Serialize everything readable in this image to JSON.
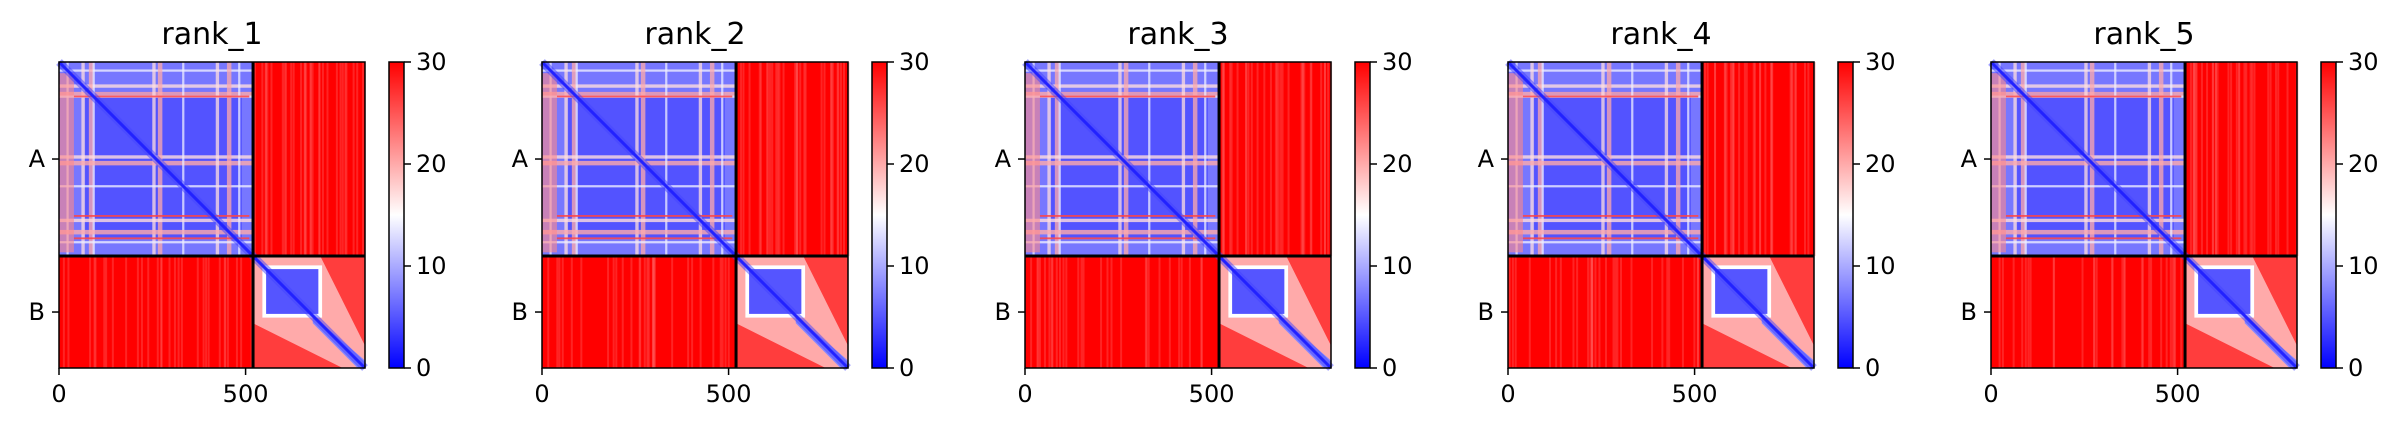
{
  "chart_data": {
    "type": "heatmap",
    "colormap": {
      "low": "#0000ff",
      "mid": "#ffffff",
      "high": "#ff0000"
    },
    "matrix_size": 820,
    "chain_boundary": 520,
    "colorbar": {
      "min": 0,
      "max": 30,
      "ticks": [
        0,
        10,
        20,
        30
      ]
    },
    "x_ticks": [
      0,
      500
    ],
    "y_tick_labels": [
      {
        "label": "A",
        "value": 260
      },
      {
        "label": "B",
        "value": 670
      }
    ],
    "panels": [
      {
        "title": "rank_1"
      },
      {
        "title": "rank_2"
      },
      {
        "title": "rank_3"
      },
      {
        "title": "rank_4"
      },
      {
        "title": "rank_5"
      }
    ]
  }
}
